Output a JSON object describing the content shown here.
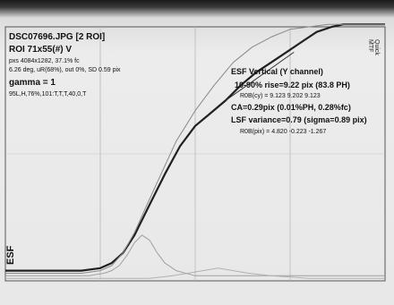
{
  "header": {
    "filename": "DSC07696.JPG [2 ROI]",
    "roi": "ROI 71x55(#) V",
    "info_line1": "pxs 4084x1282, 37.1% fc",
    "info_line2": "6.26 deg, uR(68%), out 0%, SD 0.59 pix",
    "gamma": "gamma = 1",
    "params": "95L,H,76%,101:T,T,T,40,0,T",
    "corner_label": "Quick MTF"
  },
  "annotation": {
    "title": "ESF Vertical (Y channel)",
    "rise": "10-90% rise=9.22 pix (83.8 PH)",
    "rgb1": "R0B(cy) = 9.123 9.202 9.123",
    "ca": "CA=0.29pix (0.01%PH, 0.28%fc)",
    "lsf": "LSF variance=0.79 (sigma=0.89 pix)",
    "rgb2": "R0B(pix) = 4.820 -0.223 -1.267"
  },
  "chart_data": {
    "type": "line",
    "title": "ESF Vertical (Y channel)",
    "ylabel": "ESF",
    "xlabel": "",
    "xlim": [
      0,
      100
    ],
    "ylim": [
      0,
      100
    ],
    "grid": true,
    "series": [
      {
        "color": "#202020",
        "x": [
          0,
          10,
          20,
          25,
          28,
          31,
          34,
          38,
          42,
          46,
          50,
          54,
          58,
          62,
          66,
          70,
          74,
          78,
          82,
          86,
          89,
          91,
          94,
          97,
          100
        ],
        "y": [
          4,
          4,
          4,
          5,
          7,
          11,
          18,
          30,
          42,
          53,
          61,
          66,
          71,
          77,
          82,
          86,
          90,
          94,
          98,
          100,
          101,
          101,
          101,
          101,
          101
        ]
      },
      {
        "color": "#8a8a8a",
        "x": [
          0,
          10,
          20,
          25,
          28,
          31,
          34,
          37,
          41,
          45,
          50,
          55,
          60,
          65,
          70,
          75,
          80,
          85,
          90,
          95,
          100
        ],
        "y": [
          3,
          3,
          3,
          4,
          6,
          11,
          19,
          29,
          42,
          55,
          67,
          77,
          86,
          92,
          96,
          99,
          100,
          101,
          101,
          101,
          101
        ]
      },
      {
        "color": "#a0a0a0",
        "x": [
          0,
          15,
          22,
          26,
          28,
          30,
          32,
          34,
          36,
          38,
          40,
          42,
          45,
          50,
          56,
          65,
          75,
          85,
          100
        ],
        "y": [
          2,
          2,
          2,
          3,
          4,
          6,
          10,
          15,
          18,
          16,
          11,
          7,
          4,
          2,
          2,
          2,
          2,
          2,
          2
        ]
      },
      {
        "color": "#b0b0b0",
        "x": [
          0,
          20,
          38,
          44,
          48,
          52,
          56,
          60,
          64,
          70,
          80,
          90,
          100
        ],
        "y": [
          1,
          1,
          1,
          2,
          3,
          4,
          5,
          4,
          3,
          2,
          1,
          1,
          1
        ]
      }
    ]
  }
}
